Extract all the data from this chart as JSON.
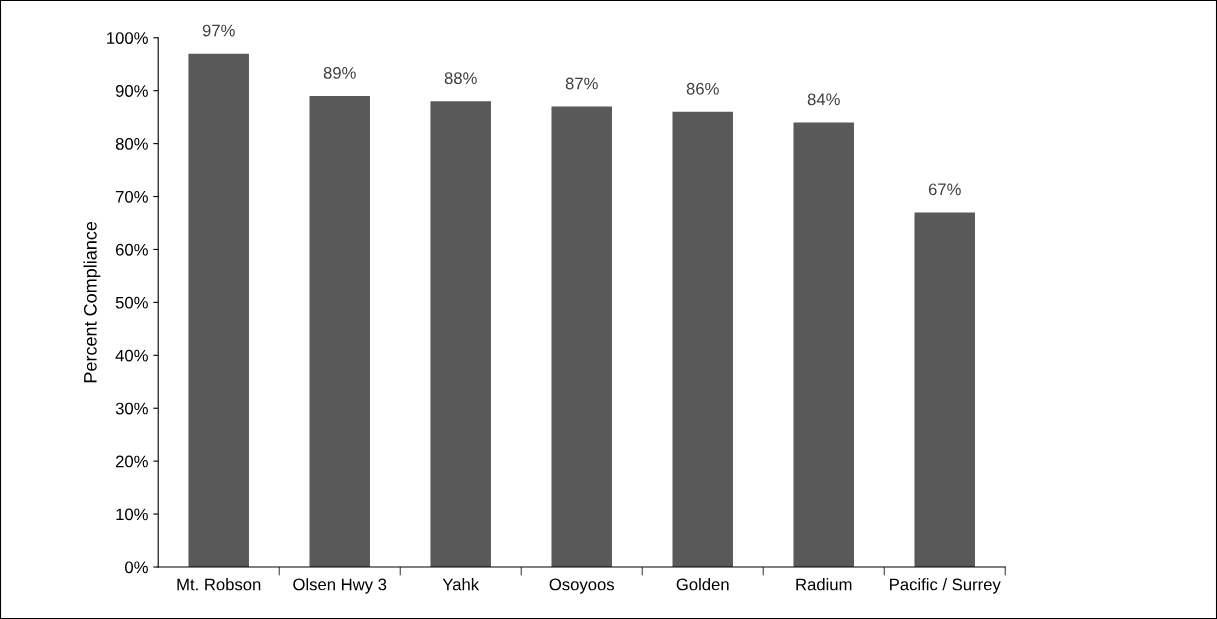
{
  "chart_data": {
    "type": "bar",
    "ylabel": "Percent Compliance",
    "categories": [
      "Mt. Robson",
      "Olsen Hwy 3",
      "Yahk",
      "Osoyoos",
      "Golden",
      "Radium",
      "Pacific / Surrey"
    ],
    "values": [
      97,
      89,
      88,
      87,
      86,
      84,
      67
    ],
    "value_labels": [
      "97%",
      "89%",
      "88%",
      "87%",
      "86%",
      "84%",
      "67%"
    ],
    "color": "#595959",
    "ylim": [
      0,
      100
    ],
    "yticks": [
      {
        "value": 0,
        "label": "0%"
      },
      {
        "value": 10,
        "label": "10%"
      },
      {
        "value": 20,
        "label": "20%"
      },
      {
        "value": 30,
        "label": "30%"
      },
      {
        "value": 40,
        "label": "40%"
      },
      {
        "value": 50,
        "label": "50%"
      },
      {
        "value": 60,
        "label": "60%"
      },
      {
        "value": 70,
        "label": "70%"
      },
      {
        "value": 80,
        "label": "80%"
      },
      {
        "value": 90,
        "label": "90%"
      },
      {
        "value": 100,
        "label": "100%"
      }
    ],
    "grid": false,
    "legend": false
  }
}
